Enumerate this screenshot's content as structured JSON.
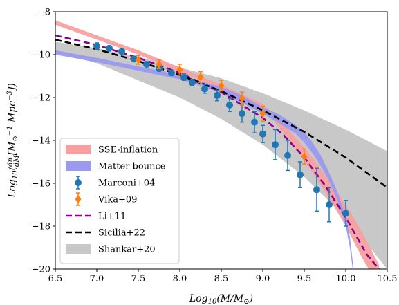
{
  "chart_data": {
    "type": "line",
    "xlabel": "Log10(M/M⊙)",
    "ylabel": "Log10(dn/dM [M⊙^-1 Mpc^-3])",
    "xlim": [
      6.5,
      10.5
    ],
    "ylim": [
      -20,
      -8
    ],
    "xticks": [
      "6.5",
      "7.0",
      "7.5",
      "8.0",
      "8.5",
      "9.0",
      "9.5",
      "10.0",
      "10.5"
    ],
    "yticks": [
      "−8",
      "−10",
      "−12",
      "−14",
      "−16",
      "−18",
      "−20"
    ],
    "legend": {
      "placement": "lower-left",
      "entries": [
        "SSE-inflation",
        "Matter bounce",
        "Marconi+04",
        "Vika+09",
        "Li+11",
        "Sicilia+22",
        "Shankar+20"
      ]
    },
    "bands": [
      {
        "name": "SSE-inflation",
        "color": "#f8a0a0",
        "x": [
          6.5,
          7.0,
          7.5,
          8.0,
          8.5,
          9.0,
          9.2,
          9.4,
          9.6,
          9.8,
          10.0,
          10.2,
          10.4
        ],
        "lower": [
          -8.6,
          -9.3,
          -10.0,
          -10.8,
          -11.6,
          -12.5,
          -13.4,
          -14.4,
          -15.5,
          -16.7,
          -18.0,
          -19.5,
          -20.8
        ],
        "upper": [
          -8.4,
          -9.1,
          -9.8,
          -10.6,
          -11.4,
          -12.3,
          -13.0,
          -13.9,
          -14.8,
          -15.9,
          -17.0,
          -18.3,
          -19.8
        ]
      },
      {
        "name": "Matter bounce",
        "color": "#9a9af0",
        "x": [
          6.5,
          7.0,
          7.5,
          8.0,
          8.25,
          8.5,
          8.75,
          9.0,
          9.2,
          9.4,
          9.5,
          9.6,
          9.7,
          9.8,
          9.9,
          10.0,
          10.05,
          10.1
        ],
        "lower": [
          -10.0,
          -10.35,
          -10.75,
          -11.15,
          -11.45,
          -11.8,
          -12.25,
          -12.75,
          -13.2,
          -13.7,
          -14.1,
          -14.6,
          -15.2,
          -15.9,
          -16.8,
          -18.0,
          -19.0,
          -20.5
        ],
        "upper": [
          -9.8,
          -10.15,
          -10.55,
          -10.95,
          -11.25,
          -11.5,
          -11.9,
          -12.45,
          -12.8,
          -13.3,
          -13.6,
          -14.1,
          -14.7,
          -15.5,
          -16.4,
          -17.6,
          -18.5,
          -20.2
        ]
      },
      {
        "name": "Shankar+20",
        "color": "#c8c8c8",
        "x": [
          6.5,
          7.0,
          7.5,
          8.0,
          8.5,
          9.0,
          9.5,
          10.0,
          10.5
        ],
        "lower": [
          -9.9,
          -10.4,
          -11.2,
          -12.0,
          -13.0,
          -14.2,
          -15.7,
          -17.6,
          -20.0
        ],
        "upper": [
          -9.4,
          -9.7,
          -10.1,
          -10.6,
          -11.1,
          -11.8,
          -12.6,
          -13.5,
          -14.5
        ]
      }
    ],
    "lines": [
      {
        "name": "Li+11",
        "color": "#8b008b",
        "dash": "dashed",
        "x": [
          6.5,
          7.0,
          7.5,
          8.0,
          8.5,
          9.0,
          9.25,
          9.5,
          9.75,
          10.0,
          10.25,
          10.4
        ],
        "y": [
          -9.1,
          -9.55,
          -10.15,
          -10.85,
          -11.75,
          -12.95,
          -13.75,
          -14.8,
          -16.1,
          -17.6,
          -19.3,
          -20.0
        ]
      },
      {
        "name": "Sicilia+22",
        "color": "#000000",
        "dash": "dashed",
        "x": [
          6.5,
          7.0,
          7.5,
          8.0,
          8.5,
          9.0,
          9.5,
          10.0,
          10.5
        ],
        "y": [
          -9.3,
          -9.75,
          -10.3,
          -10.95,
          -11.7,
          -12.6,
          -13.6,
          -14.8,
          -16.2
        ]
      }
    ],
    "series": [
      {
        "name": "Marconi+04",
        "color": "#1f77b4",
        "marker": "circle",
        "x": [
          7.0,
          7.15,
          7.3,
          7.45,
          7.6,
          7.75,
          7.9,
          8.05,
          8.15,
          8.3,
          8.45,
          8.6,
          8.75,
          8.9,
          9.0,
          9.15,
          9.3,
          9.45,
          9.65,
          9.8,
          10.0
        ],
        "y": [
          -9.6,
          -9.7,
          -9.85,
          -10.2,
          -10.45,
          -10.65,
          -10.85,
          -11.05,
          -11.3,
          -11.6,
          -11.9,
          -12.35,
          -12.75,
          -13.15,
          -13.7,
          -14.2,
          -14.7,
          -15.6,
          -16.3,
          -17.0,
          -17.4
        ],
        "yerr": [
          0.15,
          0.1,
          0.1,
          0.12,
          0.12,
          0.12,
          0.12,
          0.15,
          0.15,
          0.2,
          0.25,
          0.3,
          0.4,
          0.5,
          0.4,
          0.7,
          0.7,
          0.6,
          1.0,
          0.8,
          0.6
        ]
      },
      {
        "name": "Vika+09",
        "color": "#ff7f0e",
        "marker": "diamond",
        "x": [
          7.5,
          7.75,
          8.0,
          8.25,
          8.5,
          8.75,
          9.0,
          9.5
        ],
        "y": [
          -10.25,
          -10.45,
          -10.7,
          -11.05,
          -11.45,
          -12.05,
          -12.75,
          -14.75
        ],
        "yerr": [
          0.2,
          0.2,
          0.25,
          0.25,
          0.25,
          0.3,
          0.35,
          0.35
        ]
      }
    ]
  }
}
